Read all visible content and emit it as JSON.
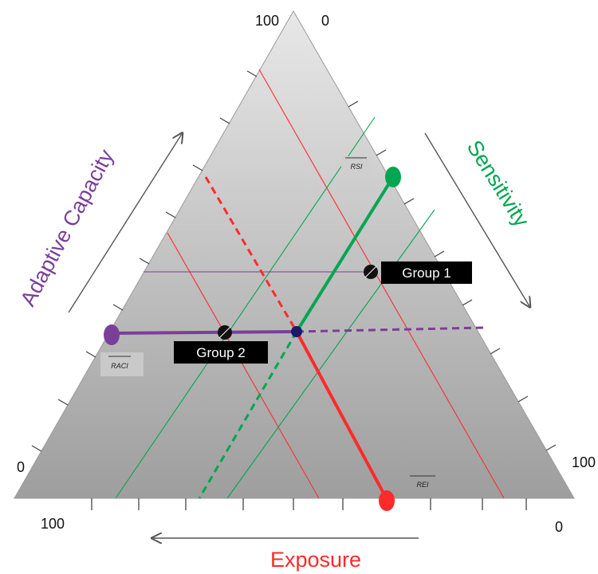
{
  "colors": {
    "adaptive_capacity": "#7b3f98",
    "sensitivity": "#00a651",
    "exposure": "#ff2a2a",
    "triangle_fill_light": "#e8e8e8",
    "triangle_fill_dark": "#9e9e9e"
  },
  "corner_labels": {
    "top_left": "100",
    "top_right": "0",
    "left": "0",
    "right": "100",
    "bottom_left": "100",
    "bottom_right": "0"
  },
  "axes": {
    "adaptive_capacity": "Adaptive Capacity",
    "sensitivity": "Sensitivity",
    "exposure": "Exposure"
  },
  "index_labels": {
    "rsi": "RSI",
    "raci": "RACI",
    "rei": "REI"
  },
  "groups": [
    {
      "label": "Group 1"
    },
    {
      "label": "Group 2"
    }
  ]
}
